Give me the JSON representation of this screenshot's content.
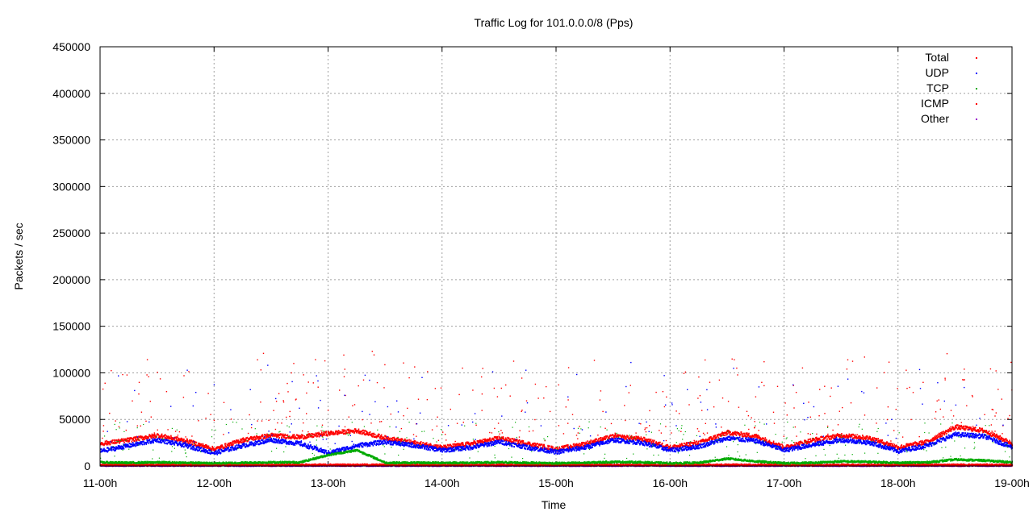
{
  "chart_data": {
    "type": "scatter",
    "title": "Traffic Log for 101.0.0.0/8 (Pps)",
    "xlabel": "Time",
    "ylabel": "Packets / sec",
    "x_ticks": [
      "11-00h",
      "12-00h",
      "13-00h",
      "14-00h",
      "15-00h",
      "16-00h",
      "17-00h",
      "18-00h",
      "19-00h"
    ],
    "y_ticks": [
      "0",
      "50000",
      "100000",
      "150000",
      "200000",
      "250000",
      "300000",
      "350000",
      "400000",
      "450000"
    ],
    "xlim_hours": [
      0,
      192
    ],
    "ylim": [
      0,
      450000
    ],
    "grid": true,
    "legend_position": "top-right",
    "series": [
      {
        "name": "Total",
        "color": "#ff0000",
        "x_hours": [
          0,
          6,
          12,
          18,
          24,
          30,
          36,
          42,
          48,
          54,
          60,
          66,
          72,
          78,
          84,
          90,
          96,
          102,
          108,
          114,
          120,
          126,
          132,
          138,
          144,
          150,
          156,
          162,
          168,
          174,
          180,
          186,
          192
        ],
        "values": [
          24000,
          28000,
          33000,
          27000,
          18000,
          28000,
          33000,
          31000,
          35000,
          38000,
          30000,
          25000,
          20000,
          24000,
          30000,
          24000,
          18000,
          24000,
          32000,
          29000,
          20000,
          25000,
          36000,
          32000,
          20000,
          28000,
          33000,
          30000,
          20000,
          26000,
          42000,
          38000,
          24000
        ]
      },
      {
        "name": "UDP",
        "color": "#0000ff",
        "x_hours": [
          0,
          6,
          12,
          18,
          24,
          30,
          36,
          42,
          48,
          54,
          60,
          66,
          72,
          78,
          84,
          90,
          96,
          102,
          108,
          114,
          120,
          126,
          132,
          138,
          144,
          150,
          156,
          162,
          168,
          174,
          180,
          186,
          192
        ],
        "values": [
          16000,
          22000,
          28000,
          22000,
          14000,
          22000,
          28000,
          24000,
          14000,
          22000,
          26000,
          22000,
          17000,
          20000,
          26000,
          20000,
          15000,
          20000,
          28000,
          25000,
          17000,
          21000,
          30000,
          27000,
          17000,
          23000,
          28000,
          25000,
          16000,
          22000,
          34000,
          32000,
          20000
        ]
      },
      {
        "name": "TCP",
        "color": "#00aa00",
        "x_hours": [
          0,
          6,
          12,
          18,
          24,
          30,
          36,
          42,
          48,
          54,
          60,
          66,
          72,
          78,
          84,
          90,
          96,
          102,
          108,
          114,
          120,
          126,
          132,
          138,
          144,
          150,
          156,
          162,
          168,
          174,
          180,
          186,
          192
        ],
        "values": [
          4000,
          3500,
          4000,
          3500,
          3000,
          3500,
          4000,
          4000,
          12000,
          17000,
          3500,
          3500,
          3500,
          3500,
          4000,
          3500,
          3000,
          3500,
          4500,
          4000,
          3000,
          3500,
          8000,
          5000,
          3000,
          3500,
          5000,
          4500,
          3500,
          4000,
          7000,
          6000,
          4000
        ]
      },
      {
        "name": "ICMP",
        "color": "#ff0000",
        "x_hours": [
          0,
          24,
          48,
          72,
          96,
          120,
          144,
          168,
          192
        ],
        "values": [
          1200,
          1200,
          1200,
          1200,
          1200,
          1200,
          1200,
          1200,
          1200
        ]
      },
      {
        "name": "Other",
        "color": "#9900cc",
        "x_hours": [
          0,
          24,
          48,
          72,
          96,
          120,
          144,
          168,
          192
        ],
        "values": [
          500,
          500,
          500,
          500,
          500,
          500,
          500,
          500,
          500
        ]
      }
    ]
  }
}
